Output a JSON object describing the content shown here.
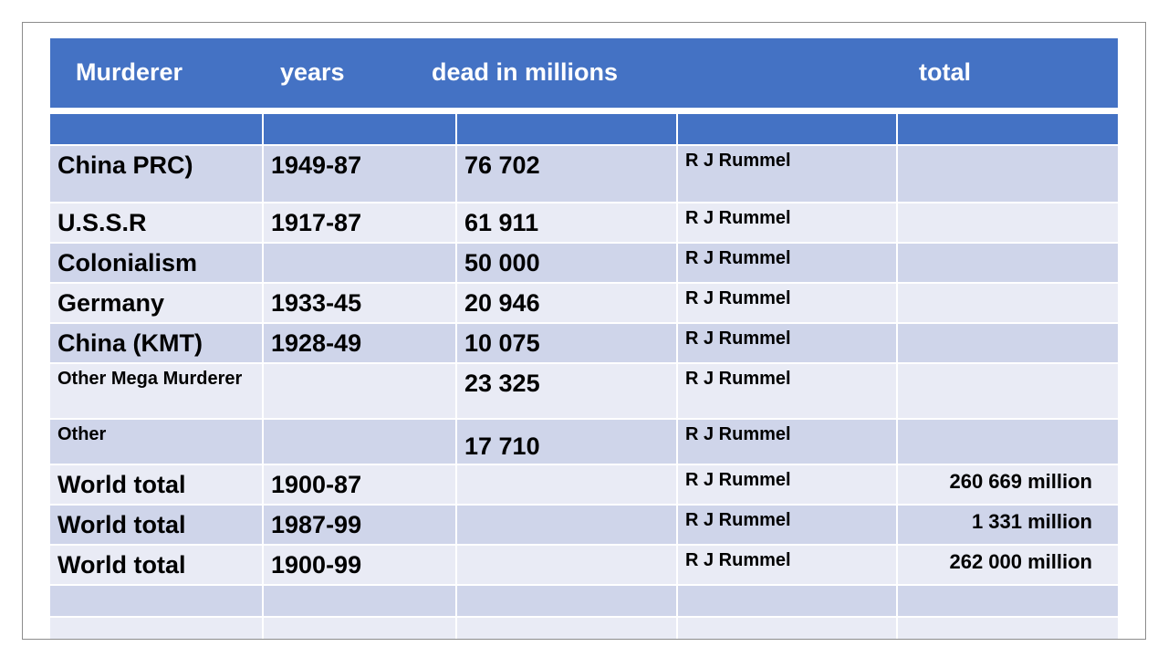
{
  "header": {
    "murderer": "Murderer",
    "years": "years",
    "dead": "dead in millions",
    "total": "total"
  },
  "rows": [
    {
      "murderer": "China PRC)",
      "years": "1949-87",
      "dead": "76 702",
      "source": "R J Rummel",
      "total": ""
    },
    {
      "murderer": "U.S.S.R",
      "years": "1917-87",
      "dead": "61 911",
      "source": "R J Rummel",
      "total": ""
    },
    {
      "murderer": "Colonialism",
      "years": "",
      "dead": "50 000",
      "source": "R J Rummel",
      "total": ""
    },
    {
      "murderer": "Germany",
      "years": "1933-45",
      "dead": "20 946",
      "source": "R J Rummel",
      "total": ""
    },
    {
      "murderer": "China (KMT)",
      "years": "1928-49",
      "dead": "10 075",
      "source": "R J Rummel",
      "total": ""
    },
    {
      "murderer": "Other Mega Murderer",
      "years": "",
      "dead": "23 325",
      "source": "R J Rummel",
      "total": ""
    },
    {
      "murderer": "Other",
      "years": "",
      "dead": "17 710",
      "source": "R J Rummel",
      "total": ""
    },
    {
      "murderer": "World total",
      "years": "1900-87",
      "dead": "",
      "source": "R J Rummel",
      "total": "260 669 million"
    },
    {
      "murderer": "World total",
      "years": "1987-99",
      "dead": "",
      "source": "R J Rummel",
      "total": "1 331 million"
    },
    {
      "murderer": "World total",
      "years": "1900-99",
      "dead": "",
      "source": "R J Rummel",
      "total": "262 000 million"
    }
  ],
  "colors": {
    "header_blue": "#4472c4",
    "row_dark": "#cfd5ea",
    "row_light": "#e9ebf5"
  }
}
